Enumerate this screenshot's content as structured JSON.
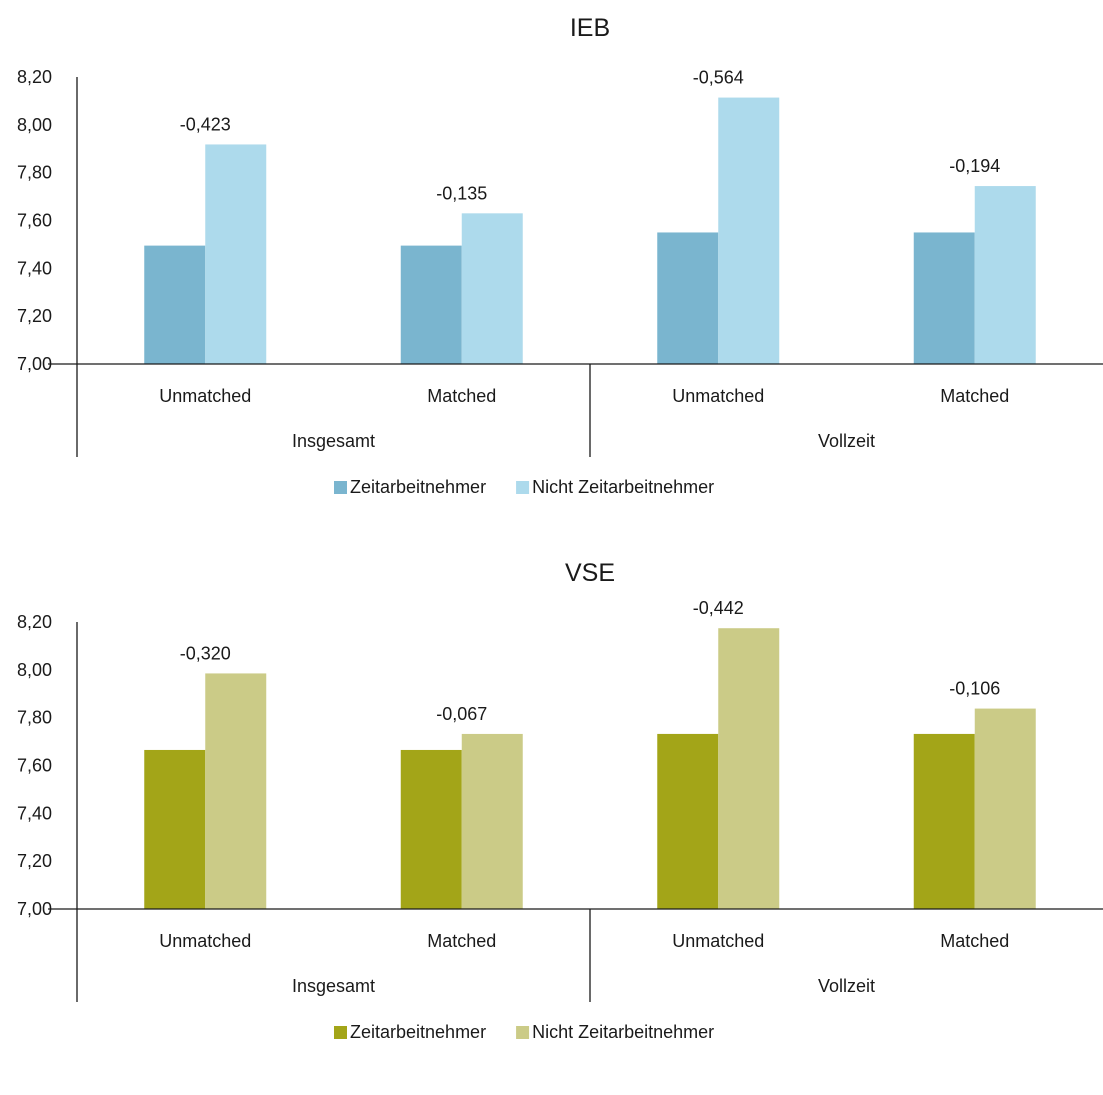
{
  "chart_data": [
    {
      "type": "bar",
      "title": "IEB",
      "ylim": [
        7.0,
        8.2
      ],
      "yticks": [
        "7,00",
        "7,20",
        "7,40",
        "7,60",
        "7,80",
        "8,00",
        "8,20"
      ],
      "groups": [
        "Insgesamt",
        "Vollzeit"
      ],
      "categories": [
        "Unmatched",
        "Matched",
        "Unmatched",
        "Matched"
      ],
      "category_group": [
        0,
        0,
        1,
        1
      ],
      "series": [
        {
          "name": "Zeitarbeitnehmer",
          "color": "#7ab5cf",
          "values": [
            7.495,
            7.495,
            7.55,
            7.55
          ]
        },
        {
          "name": "Nicht Zeitarbeitnehmer",
          "color": "#addaec",
          "values": [
            7.918,
            7.63,
            8.114,
            7.744
          ]
        }
      ],
      "data_labels": [
        "-0,423",
        "-0,135",
        "-0,564",
        "-0,194"
      ],
      "legend": "bottom",
      "grid": false
    },
    {
      "type": "bar",
      "title": "VSE",
      "ylim": [
        7.0,
        8.2
      ],
      "yticks": [
        "7,00",
        "7,20",
        "7,40",
        "7,60",
        "7,80",
        "8,00",
        "8,20"
      ],
      "groups": [
        "Insgesamt",
        "Vollzeit"
      ],
      "categories": [
        "Unmatched",
        "Matched",
        "Unmatched",
        "Matched"
      ],
      "category_group": [
        0,
        0,
        1,
        1
      ],
      "series": [
        {
          "name": "Zeitarbeitnehmer",
          "color": "#a3a518",
          "values": [
            7.665,
            7.665,
            7.732,
            7.732
          ]
        },
        {
          "name": "Nicht Zeitarbeitnehmer",
          "color": "#cbcb87",
          "values": [
            7.985,
            7.732,
            8.174,
            7.838
          ]
        }
      ],
      "data_labels": [
        "-0,320",
        "-0,067",
        "-0,442",
        "-0,106"
      ],
      "legend": "bottom",
      "grid": false
    }
  ]
}
